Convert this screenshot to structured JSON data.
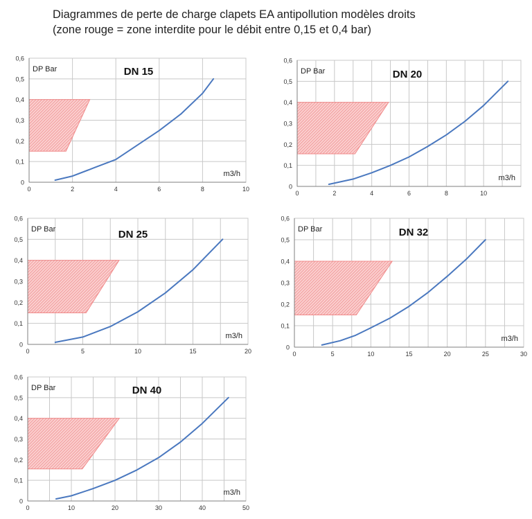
{
  "page": {
    "title_line1": "Diagrammes de perte de charge clapets EA antipollution modèles droits",
    "title_line2": "(zone rouge = zone interdite pour le débit entre 0,15 et 0,4 bar)"
  },
  "colors": {
    "curve": "#4a78bf",
    "zone": "#f08a8a",
    "grid": "#c8c8c8",
    "axis": "#7f7f7f"
  },
  "chart_data": [
    {
      "type": "line",
      "title": "DN 15",
      "ylabel": "DP Bar",
      "xlabel": "m3/h",
      "xlim": [
        0,
        10
      ],
      "ylim": [
        0,
        0.6
      ],
      "x_ticks": [
        0,
        2,
        4,
        6,
        8,
        10
      ],
      "y_ticks": [
        0,
        0.1,
        0.2,
        0.3,
        0.4,
        0.5,
        0.6
      ],
      "x_tick_labels": [
        "0",
        "2",
        "4",
        "6",
        "8",
        "10"
      ],
      "y_tick_labels": [
        "0",
        "0,1",
        "0,2",
        "0,3",
        "0,4",
        "0,5",
        "0,6"
      ],
      "x_gridlines": [
        2,
        4,
        6,
        8
      ],
      "series": [
        {
          "x": [
            1.2,
            2,
            3,
            4,
            5,
            6,
            7,
            8,
            8.5
          ],
          "y": [
            0.01,
            0.03,
            0.07,
            0.11,
            0.18,
            0.25,
            0.33,
            0.43,
            0.5
          ]
        }
      ],
      "forbidden_zone": [
        [
          0,
          0.15
        ],
        [
          1.7,
          0.15
        ],
        [
          2.8,
          0.4
        ],
        [
          0,
          0.4
        ]
      ]
    },
    {
      "type": "line",
      "title": "DN 20",
      "ylabel": "DP Bar",
      "xlabel": "m3/h",
      "xlim": [
        0,
        12
      ],
      "ylim": [
        0,
        0.6
      ],
      "x_ticks": [
        0,
        2,
        4,
        6,
        8,
        10
      ],
      "y_ticks": [
        0,
        0.1,
        0.2,
        0.3,
        0.4,
        0.5,
        0.6
      ],
      "x_tick_labels": [
        "0",
        "2",
        "4",
        "6",
        "8",
        "10"
      ],
      "y_tick_labels": [
        "0",
        "0,1",
        "0,2",
        "0,3",
        "0,4",
        "0,5",
        "0,6"
      ],
      "x_gridlines": [
        1,
        2,
        3,
        4,
        5,
        6,
        7,
        8,
        9,
        10,
        11
      ],
      "series": [
        {
          "x": [
            1.7,
            3,
            4,
            5,
            6,
            7,
            8,
            9,
            10,
            11.3
          ],
          "y": [
            0.01,
            0.035,
            0.065,
            0.1,
            0.14,
            0.19,
            0.245,
            0.31,
            0.385,
            0.5
          ]
        }
      ],
      "forbidden_zone": [
        [
          0,
          0.155
        ],
        [
          3.1,
          0.155
        ],
        [
          4.9,
          0.4
        ],
        [
          0,
          0.4
        ]
      ]
    },
    {
      "type": "line",
      "title": "DN 25",
      "ylabel": "DP Bar",
      "xlabel": "m3/h",
      "xlim": [
        0,
        20
      ],
      "ylim": [
        0,
        0.6
      ],
      "x_ticks": [
        0,
        5,
        10,
        15,
        20
      ],
      "y_ticks": [
        0,
        0.1,
        0.2,
        0.3,
        0.4,
        0.5,
        0.6
      ],
      "x_tick_labels": [
        "0",
        "5",
        "10",
        "15",
        "20"
      ],
      "y_tick_labels": [
        "0",
        "0,1",
        "0,2",
        "0,3",
        "0,4",
        "0,5",
        "0,6"
      ],
      "x_gridlines": [
        2.5,
        5,
        7.5,
        10,
        12.5,
        15,
        17.5
      ],
      "series": [
        {
          "x": [
            2.5,
            5,
            7.5,
            10,
            12.5,
            15,
            17.7
          ],
          "y": [
            0.01,
            0.035,
            0.085,
            0.155,
            0.245,
            0.355,
            0.5
          ]
        }
      ],
      "forbidden_zone": [
        [
          0,
          0.15
        ],
        [
          5.3,
          0.15
        ],
        [
          8.3,
          0.4
        ],
        [
          0,
          0.4
        ]
      ]
    },
    {
      "type": "line",
      "title": "DN 32",
      "ylabel": "DP Bar",
      "xlabel": "m3/h",
      "xlim": [
        0,
        30
      ],
      "ylim": [
        0,
        0.6
      ],
      "x_ticks": [
        0,
        5,
        10,
        15,
        20,
        25,
        30
      ],
      "y_ticks": [
        0,
        0.1,
        0.2,
        0.3,
        0.4,
        0.5,
        0.6
      ],
      "x_tick_labels": [
        "0",
        "5",
        "10",
        "15",
        "20",
        "25",
        "30"
      ],
      "y_tick_labels": [
        "0",
        "0,1",
        "0,2",
        "0,3",
        "0,4",
        "0,5",
        "0,6"
      ],
      "x_gridlines": [
        2.5,
        5,
        7.5,
        10,
        12.5,
        15,
        17.5,
        20,
        22.5,
        25,
        27.5
      ],
      "series": [
        {
          "x": [
            3.6,
            6,
            8,
            10,
            12.5,
            15,
            17.5,
            20,
            22.5,
            25
          ],
          "y": [
            0.01,
            0.03,
            0.055,
            0.09,
            0.135,
            0.19,
            0.255,
            0.33,
            0.41,
            0.5
          ]
        }
      ],
      "forbidden_zone": [
        [
          0,
          0.15
        ],
        [
          8.1,
          0.15
        ],
        [
          12.8,
          0.4
        ],
        [
          0,
          0.4
        ]
      ]
    },
    {
      "type": "line",
      "title": "DN 40",
      "ylabel": "DP Bar",
      "xlabel": "m3/h",
      "xlim": [
        0,
        50
      ],
      "ylim": [
        0,
        0.6
      ],
      "x_ticks": [
        0,
        10,
        20,
        30,
        40,
        50
      ],
      "y_ticks": [
        0,
        0.1,
        0.2,
        0.3,
        0.4,
        0.5,
        0.6
      ],
      "x_tick_labels": [
        "0",
        "10",
        "20",
        "30",
        "40",
        "50"
      ],
      "y_tick_labels": [
        "0",
        "0,1",
        "0,2",
        "0,3",
        "0,4",
        "0,5",
        "0,6"
      ],
      "x_gridlines": [
        5,
        10,
        15,
        20,
        25,
        30,
        35,
        40,
        45
      ],
      "series": [
        {
          "x": [
            6.5,
            10,
            15,
            20,
            25,
            30,
            35,
            40,
            46
          ],
          "y": [
            0.01,
            0.025,
            0.06,
            0.1,
            0.15,
            0.21,
            0.285,
            0.375,
            0.5
          ]
        }
      ],
      "forbidden_zone": [
        [
          0,
          0.155
        ],
        [
          12.5,
          0.155
        ],
        [
          21,
          0.4
        ],
        [
          0,
          0.4
        ]
      ]
    }
  ]
}
